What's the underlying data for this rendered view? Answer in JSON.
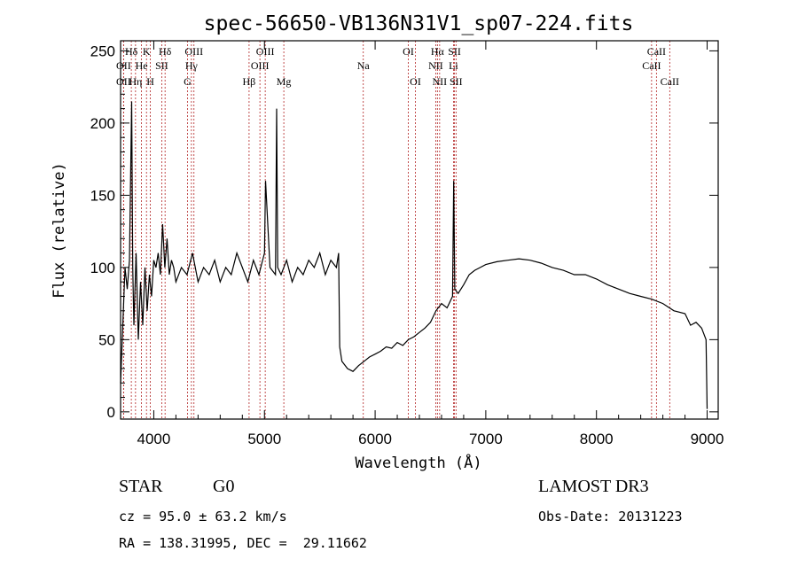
{
  "chart_data": {
    "type": "line",
    "title": "spec-56650-VB136N31V1_sp07-224.fits",
    "xlabel": "Wavelength (Å)",
    "ylabel": "Flux (relative)",
    "xlim": [
      3700,
      9100
    ],
    "ylim": [
      -5,
      257
    ],
    "xticks": [
      4000,
      5000,
      6000,
      7000,
      8000,
      9000
    ],
    "yticks": [
      0,
      50,
      100,
      150,
      200,
      250
    ],
    "series": [
      {
        "name": "flux",
        "x": [
          3700,
          3720,
          3740,
          3760,
          3780,
          3800,
          3810,
          3820,
          3840,
          3860,
          3880,
          3900,
          3920,
          3940,
          3960,
          3980,
          4000,
          4020,
          4040,
          4060,
          4080,
          4100,
          4120,
          4140,
          4160,
          4180,
          4200,
          4250,
          4300,
          4350,
          4400,
          4450,
          4500,
          4550,
          4600,
          4650,
          4700,
          4750,
          4800,
          4850,
          4900,
          4950,
          5000,
          5010,
          5050,
          5100,
          5110,
          5120,
          5150,
          5200,
          5250,
          5300,
          5350,
          5400,
          5450,
          5500,
          5550,
          5600,
          5650,
          5670,
          5680,
          5700,
          5750,
          5800,
          5850,
          5900,
          5950,
          6000,
          6050,
          6100,
          6150,
          6200,
          6250,
          6300,
          6350,
          6400,
          6450,
          6500,
          6550,
          6600,
          6650,
          6700,
          6710,
          6720,
          6750,
          6800,
          6850,
          6900,
          6950,
          7000,
          7100,
          7200,
          7300,
          7400,
          7500,
          7600,
          7700,
          7800,
          7900,
          8000,
          8100,
          8200,
          8300,
          8400,
          8500,
          8600,
          8700,
          8800,
          8850,
          8900,
          8950,
          8990,
          9000
        ],
        "y": [
          20,
          60,
          100,
          85,
          105,
          215,
          100,
          60,
          110,
          50,
          90,
          60,
          100,
          70,
          95,
          80,
          105,
          100,
          110,
          95,
          130,
          100,
          120,
          95,
          105,
          100,
          90,
          100,
          95,
          110,
          90,
          100,
          95,
          105,
          90,
          100,
          95,
          110,
          100,
          90,
          105,
          95,
          110,
          160,
          100,
          95,
          210,
          100,
          95,
          105,
          90,
          100,
          95,
          105,
          100,
          110,
          95,
          105,
          100,
          110,
          45,
          35,
          30,
          28,
          32,
          35,
          38,
          40,
          42,
          45,
          44,
          48,
          46,
          50,
          52,
          55,
          58,
          62,
          70,
          75,
          72,
          80,
          160,
          85,
          82,
          88,
          95,
          98,
          100,
          102,
          104,
          105,
          106,
          105,
          103,
          100,
          98,
          95,
          95,
          92,
          88,
          85,
          82,
          80,
          78,
          75,
          70,
          68,
          60,
          62,
          58,
          50,
          2
        ]
      }
    ],
    "emission_lines": [
      {
        "label": "Hδ",
        "wavelength": 3797,
        "row": 1
      },
      {
        "label": "OII",
        "wavelength": 3727,
        "row": 2
      },
      {
        "label": "OII",
        "wavelength": 3727,
        "row": 3
      },
      {
        "label": "He",
        "wavelength": 3889,
        "row": 2
      },
      {
        "label": "Hη",
        "wavelength": 3835,
        "row": 3
      },
      {
        "label": "K",
        "wavelength": 3934,
        "row": 1
      },
      {
        "label": "H",
        "wavelength": 3969,
        "row": 3
      },
      {
        "label": "SII",
        "wavelength": 4072,
        "row": 2
      },
      {
        "label": "Hδ",
        "wavelength": 4102,
        "row": 1
      },
      {
        "label": "OIII",
        "wavelength": 4363,
        "row": 1
      },
      {
        "label": "Hγ",
        "wavelength": 4340,
        "row": 2
      },
      {
        "label": "G",
        "wavelength": 4305,
        "row": 3
      },
      {
        "label": "Hβ",
        "wavelength": 4861,
        "row": 3
      },
      {
        "label": "OIII",
        "wavelength": 4959,
        "row": 2
      },
      {
        "label": "OIII",
        "wavelength": 5007,
        "row": 1
      },
      {
        "label": "Mg",
        "wavelength": 5175,
        "row": 3
      },
      {
        "label": "Na",
        "wavelength": 5893,
        "row": 2
      },
      {
        "label": "OI",
        "wavelength": 6300,
        "row": 1
      },
      {
        "label": "OI",
        "wavelength": 6364,
        "row": 3
      },
      {
        "label": "NII",
        "wavelength": 6548,
        "row": 2
      },
      {
        "label": "Hα",
        "wavelength": 6563,
        "row": 1
      },
      {
        "label": "NII",
        "wavelength": 6583,
        "row": 3
      },
      {
        "label": "Li",
        "wavelength": 6708,
        "row": 2
      },
      {
        "label": "SII",
        "wavelength": 6717,
        "row": 1
      },
      {
        "label": "SII",
        "wavelength": 6731,
        "row": 3
      },
      {
        "label": "CaII",
        "wavelength": 8498,
        "row": 2
      },
      {
        "label": "CaII",
        "wavelength": 8542,
        "row": 1
      },
      {
        "label": "CaII",
        "wavelength": 8662,
        "row": 3
      }
    ],
    "line_color": "#000000",
    "marker_color": "#b22222"
  },
  "info": {
    "object_type": "STAR",
    "subclass": "G0",
    "survey": "LAMOST DR3",
    "redshift": "cz = 95.0 ± 63.2 km/s",
    "obs_date": "Obs-Date: 20131223",
    "coords": "RA = 138.31995, DEC =  29.11662"
  }
}
